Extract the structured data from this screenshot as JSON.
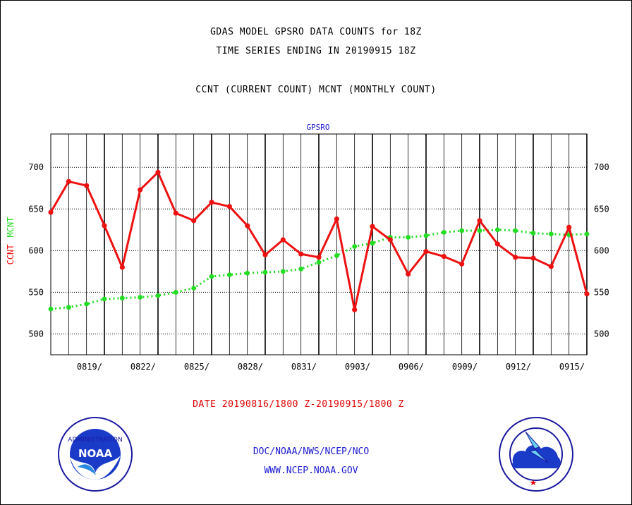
{
  "header": {
    "line1": "GDAS MODEL GPSRO DATA COUNTS for 18Z",
    "line2": "TIME SERIES ENDING IN 20190915 18Z",
    "line3": "CCNT (CURRENT COUNT) MCNT (MONTHLY COUNT)"
  },
  "footer": {
    "date_range": "DATE 20190816/1800 Z-20190915/1800 Z",
    "link1": "DOC/NOAA/NWS/NCEP/NCO",
    "link2": "WWW.NCEP.NOAA.GOV"
  },
  "logos": {
    "left_logo_text": "NOAA",
    "right_logo_name": "national-weather-service-logo"
  },
  "chart_data": {
    "type": "line",
    "title": "GPSRO",
    "ylabel": "CCNT  MCNT",
    "ylim": [
      475,
      740
    ],
    "yticks": [
      500,
      550,
      600,
      650,
      700
    ],
    "xlim": [
      0,
      30
    ],
    "xtick_positions": [
      3,
      6,
      9,
      12,
      15,
      18,
      21,
      24,
      27,
      30
    ],
    "xtick_labels": [
      "0819/",
      "0822/",
      "0825/",
      "0828/",
      "0831/",
      "0903/",
      "0906/",
      "0909/",
      "0912/",
      "0915/"
    ],
    "grid": true,
    "colors": {
      "ccnt": "#ee1111",
      "mcnt": "#22dd22",
      "title": "#1a1ad0",
      "ylabel_ccnt": "#ee1111",
      "ylabel_mcnt": "#22dd22"
    },
    "series": [
      {
        "name": "CCNT",
        "x": [
          0,
          1,
          2,
          3,
          4,
          5,
          6,
          7,
          8,
          9,
          10,
          11,
          12,
          13,
          14,
          15,
          16,
          17,
          18,
          19,
          20,
          21,
          22,
          23,
          24,
          25,
          26,
          27,
          28,
          29,
          30
        ],
        "values": [
          646,
          683,
          678,
          630,
          580,
          673,
          694,
          645,
          636,
          658,
          653,
          630,
          595,
          613,
          596,
          592,
          638,
          529,
          629,
          613,
          572,
          599,
          593,
          584,
          636,
          608,
          592,
          591,
          581,
          628,
          548
        ]
      },
      {
        "name": "MCNT",
        "x": [
          0,
          1,
          2,
          3,
          4,
          5,
          6,
          7,
          8,
          9,
          10,
          11,
          12,
          13,
          14,
          15,
          16,
          17,
          18,
          19,
          20,
          21,
          22,
          23,
          24,
          25,
          26,
          27,
          28,
          29,
          30
        ],
        "values": [
          530,
          532,
          536,
          542,
          543,
          544,
          546,
          550,
          555,
          569,
          571,
          573,
          574,
          575,
          578,
          586,
          594,
          605,
          609,
          616,
          616,
          618,
          622,
          624,
          624,
          625,
          624,
          621,
          620,
          619,
          620
        ]
      }
    ]
  }
}
